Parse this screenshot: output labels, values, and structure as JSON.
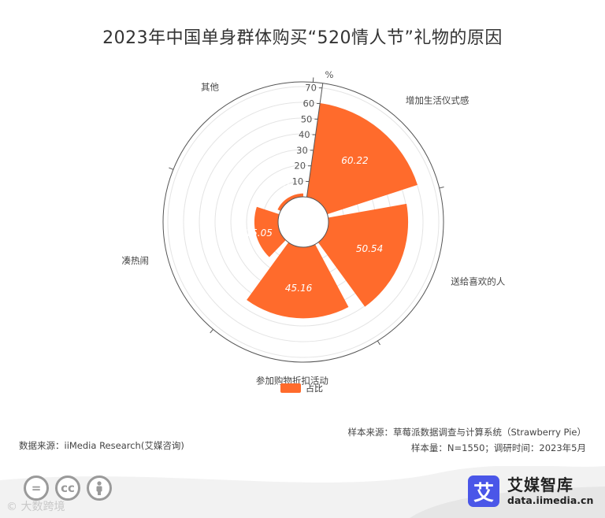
{
  "page": {
    "title": "2023年中国单身群体购买“520情人节”礼物的原因"
  },
  "chart_data": {
    "type": "polar-bar",
    "title": "2023年中国单身群体购买“520情人节”礼物的原因",
    "unit": "%",
    "radial_axis": {
      "min": 0,
      "max": 70,
      "ticks": [
        10,
        20,
        30,
        40,
        50,
        60,
        70
      ]
    },
    "categories": [
      "增加生活仪式感",
      "送给喜欢的人",
      "参加购物折扣活动",
      "凑热闹",
      "其他"
    ],
    "series": [
      {
        "name": "占比",
        "color": "#FF6B2C",
        "values": [
          60.22,
          50.54,
          45.16,
          15.05,
          2.15
        ]
      }
    ],
    "grid": true,
    "legend": "bottom-center"
  },
  "footer": {
    "data_source": "数据来源：iiMedia Research(艾媒咨询)",
    "sample_source": "样本来源：草莓派数据调查与计算系统（Strawberry Pie）",
    "sample_info": "样本量：N=1550；调研时间：2023年5月"
  },
  "brand": {
    "logo_char": "艾",
    "name": "艾媒智库",
    "url": "data.iimedia.cn"
  },
  "license_icons": {
    "icon1": "=",
    "icon2": "cc",
    "icon3": "person-icon"
  },
  "watermark": "© 大数跨境"
}
